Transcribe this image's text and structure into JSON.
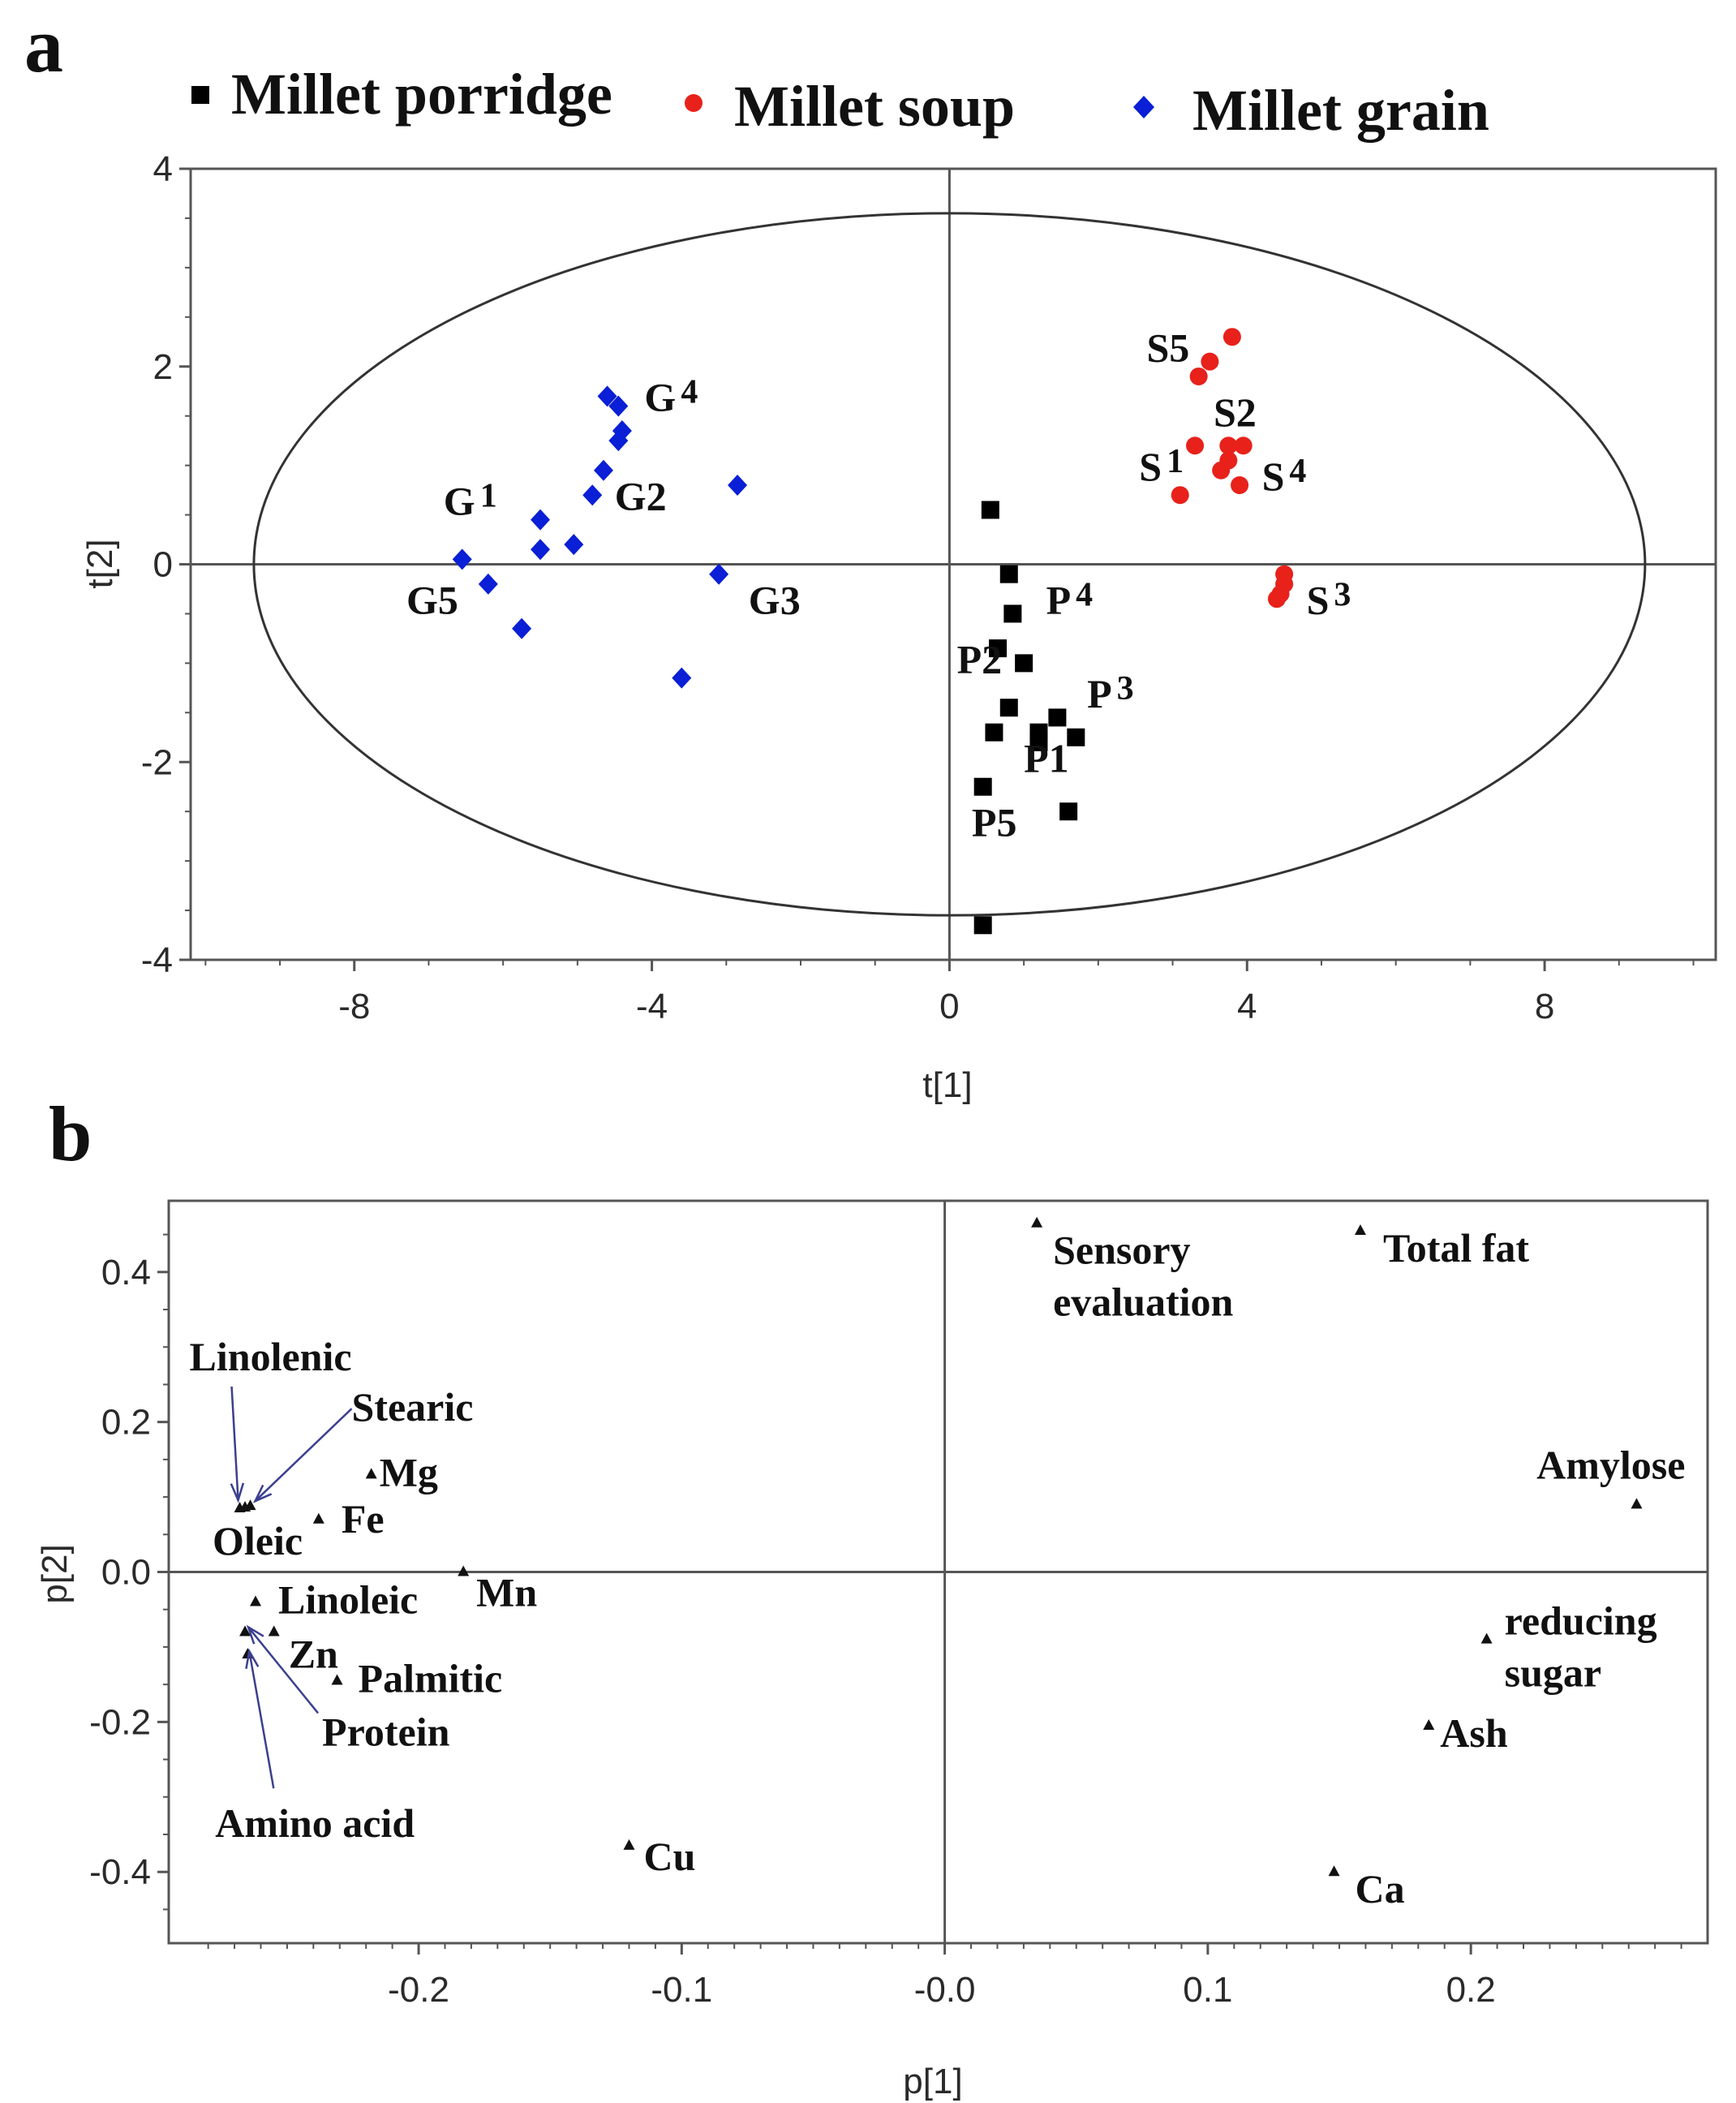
{
  "panel_a": {
    "letter": "a",
    "legend": [
      {
        "label": "Millet porridge",
        "color": "#000000",
        "marker": "square"
      },
      {
        "label": "Millet soup",
        "color": "#e8211b",
        "marker": "circle"
      },
      {
        "label": "Millet grain",
        "color": "#0a1fd6",
        "marker": "diamond"
      }
    ]
  },
  "panel_b": {
    "letter": "b"
  },
  "chart_data": [
    {
      "type": "scatter",
      "title": "",
      "xlabel": "t[1]",
      "ylabel": "t[2]",
      "xlim": [
        -10.2,
        10.3
      ],
      "ylim": [
        -4.0,
        4.0
      ],
      "xticks": [
        -8,
        -4,
        0,
        4,
        8
      ],
      "yticks": [
        4,
        2,
        0,
        -2,
        -4
      ],
      "tick_labels_x": [
        "-8",
        "-4",
        "0",
        "4",
        "8"
      ],
      "tick_labels_y": [
        "4",
        "2",
        "0",
        "-2",
        "-4"
      ],
      "ellipse": {
        "cx": 0,
        "cy": 0,
        "rx": 9.35,
        "ry": 3.55
      },
      "series": [
        {
          "name": "Millet porridge",
          "color": "#000000",
          "marker": "square",
          "points": [
            [
              0.55,
              0.55
            ],
            [
              0.8,
              -0.1
            ],
            [
              0.85,
              -0.5
            ],
            [
              0.65,
              -0.85
            ],
            [
              1.0,
              -1.0
            ],
            [
              0.8,
              -1.45
            ],
            [
              0.6,
              -1.7
            ],
            [
              1.2,
              -1.7
            ],
            [
              1.2,
              -1.8
            ],
            [
              1.45,
              -1.55
            ],
            [
              1.7,
              -1.75
            ],
            [
              1.6,
              -2.5
            ],
            [
              0.45,
              -2.25
            ],
            [
              0.45,
              -3.65
            ]
          ]
        },
        {
          "name": "Millet soup",
          "color": "#e8211b",
          "marker": "circle",
          "points": [
            [
              3.8,
              2.3
            ],
            [
              3.5,
              2.05
            ],
            [
              3.35,
              1.9
            ],
            [
              3.3,
              1.2
            ],
            [
              3.75,
              1.2
            ],
            [
              3.95,
              1.2
            ],
            [
              3.75,
              1.05
            ],
            [
              3.65,
              0.95
            ],
            [
              3.9,
              0.8
            ],
            [
              3.1,
              0.7
            ],
            [
              4.5,
              -0.1
            ],
            [
              4.5,
              -0.2
            ],
            [
              4.45,
              -0.3
            ],
            [
              4.4,
              -0.35
            ]
          ]
        },
        {
          "name": "Millet grain",
          "color": "#0a1fd6",
          "marker": "diamond",
          "points": [
            [
              -4.6,
              1.7
            ],
            [
              -4.45,
              1.6
            ],
            [
              -4.4,
              1.35
            ],
            [
              -4.45,
              1.25
            ],
            [
              -4.65,
              0.95
            ],
            [
              -4.8,
              0.7
            ],
            [
              -2.85,
              0.8
            ],
            [
              -5.5,
              0.45
            ],
            [
              -5.5,
              0.15
            ],
            [
              -5.05,
              0.2
            ],
            [
              -6.55,
              0.05
            ],
            [
              -6.2,
              -0.2
            ],
            [
              -5.75,
              -0.65
            ],
            [
              -3.1,
              -0.1
            ],
            [
              -3.6,
              -1.15
            ]
          ]
        }
      ],
      "annotations": [
        {
          "text": "G",
          "sub": "4",
          "x": -4.1,
          "y": 1.55
        },
        {
          "text": "G",
          "sub": "1",
          "x": -6.8,
          "y": 0.5
        },
        {
          "text": "G2",
          "x": -4.5,
          "y": 0.55
        },
        {
          "text": "G5",
          "x": -7.3,
          "y": -0.5
        },
        {
          "text": "G3",
          "x": -2.7,
          "y": -0.5
        },
        {
          "text": "S5",
          "x": 2.65,
          "y": 2.05
        },
        {
          "text": "S2",
          "x": 3.55,
          "y": 1.4
        },
        {
          "text": "S",
          "sub": "1",
          "x": 2.55,
          "y": 0.85
        },
        {
          "text": "S",
          "sub": "4",
          "x": 4.2,
          "y": 0.75
        },
        {
          "text": "S",
          "sub": "3",
          "x": 4.8,
          "y": -0.5
        },
        {
          "text": "P",
          "sub": "4",
          "x": 1.3,
          "y": -0.5
        },
        {
          "text": "P2",
          "x": 0.1,
          "y": -1.1
        },
        {
          "text": "P",
          "sub": "3",
          "x": 1.85,
          "y": -1.45
        },
        {
          "text": "P1",
          "x": 1.0,
          "y": -2.1
        },
        {
          "text": "P5",
          "x": 0.3,
          "y": -2.75
        }
      ]
    },
    {
      "type": "scatter",
      "title": "",
      "xlabel": "p[1]",
      "ylabel": "p[2]",
      "xlim": [
        -0.295,
        0.29
      ],
      "ylim": [
        -0.495,
        0.495
      ],
      "xticks": [
        -0.2,
        -0.1,
        0.0,
        0.1,
        0.2
      ],
      "yticks": [
        0.4,
        0.2,
        0.0,
        -0.2,
        -0.4
      ],
      "tick_labels_x": [
        "-0.2",
        "-0.1",
        "-0.0",
        "0.1",
        "0.2"
      ],
      "tick_labels_y": [
        "0.4",
        "0.2",
        "0.0",
        "-0.2",
        "-0.4"
      ],
      "points": [
        {
          "label": "Sensory evaluation",
          "x": 0.035,
          "y": 0.465
        },
        {
          "label": "Total fat",
          "x": 0.158,
          "y": 0.455
        },
        {
          "label": "Amylose",
          "x": 0.263,
          "y": 0.09
        },
        {
          "label": "reducing sugar",
          "x": 0.206,
          "y": -0.09
        },
        {
          "label": "Ash",
          "x": 0.184,
          "y": -0.205
        },
        {
          "label": "Ca",
          "x": 0.148,
          "y": -0.4
        },
        {
          "label": "Cu",
          "x": -0.12,
          "y": -0.365
        },
        {
          "label": "Mn",
          "x": -0.183,
          "y": 0.0
        },
        {
          "label": "Mg",
          "x": -0.218,
          "y": 0.13
        },
        {
          "label": "Fe",
          "x": -0.238,
          "y": 0.07
        },
        {
          "label": "Linolenic",
          "x": -0.268,
          "y": 0.085
        },
        {
          "label": "Stearic",
          "x": -0.264,
          "y": 0.088
        },
        {
          "label": "Oleic",
          "x": -0.266,
          "y": 0.086
        },
        {
          "label": "Linoleic",
          "x": -0.262,
          "y": -0.04
        },
        {
          "label": "Zn",
          "x": -0.255,
          "y": -0.08
        },
        {
          "label": "Palmitic",
          "x": -0.231,
          "y": -0.145
        },
        {
          "label": "Protein",
          "x": -0.266,
          "y": -0.08
        },
        {
          "label": "Amino acid",
          "x": -0.265,
          "y": -0.11
        }
      ]
    }
  ]
}
